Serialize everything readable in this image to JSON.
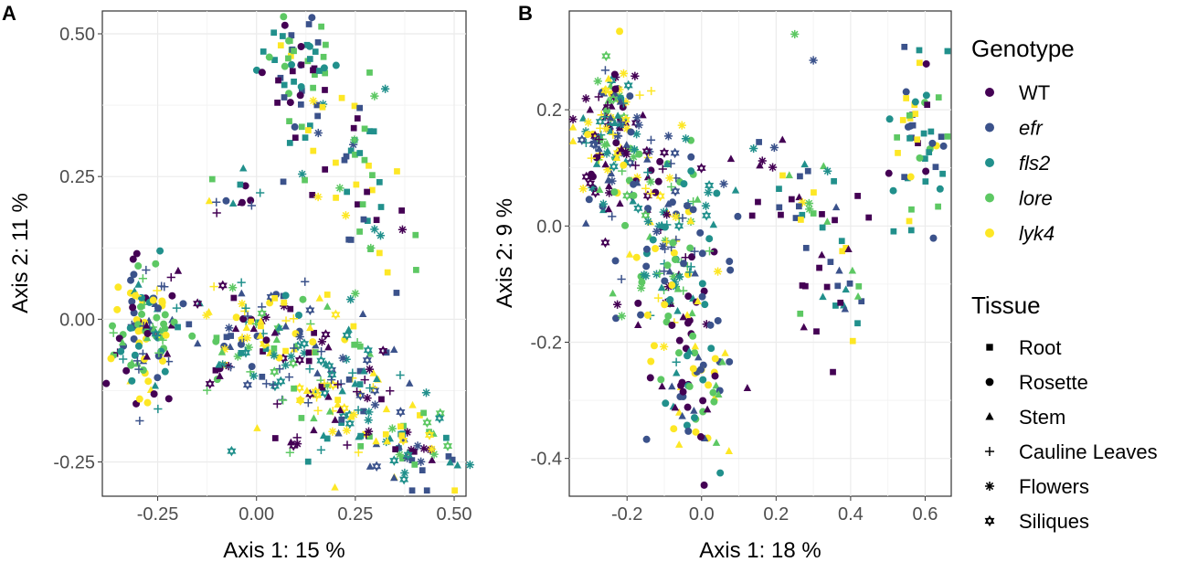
{
  "chart_data": [
    {
      "type": "scatter",
      "panel_label": "A",
      "xlabel": "Axis 1:  15 %",
      "ylabel": "Axis 2:  11 %",
      "xlim": [
        -0.39,
        0.53
      ],
      "ylim": [
        -0.31,
        0.54
      ],
      "xticks": [
        -0.25,
        0.0,
        0.25,
        0.5
      ],
      "xtick_labels": [
        "-0.25",
        "0.00",
        "0.25",
        "0.50"
      ],
      "yticks": [
        -0.25,
        0.0,
        0.25,
        0.5
      ],
      "ytick_labels": [
        "-0.25",
        "0.00",
        "0.25",
        "0.50"
      ],
      "grid": true,
      "clusters": [
        {
          "cx": 0.1,
          "cy": 0.44,
          "sx": 0.05,
          "sy": 0.05,
          "n": 60,
          "tissues": [
            "Root",
            "Root",
            "Root",
            "Rosette"
          ]
        },
        {
          "cx": 0.22,
          "cy": 0.3,
          "sx": 0.07,
          "sy": 0.07,
          "n": 50,
          "tissues": [
            "Root",
            "Root",
            "Root",
            "Flowers"
          ]
        },
        {
          "cx": 0.3,
          "cy": 0.15,
          "sx": 0.06,
          "sy": 0.05,
          "n": 20,
          "tissues": [
            "Root",
            "Root",
            "Flowers"
          ]
        },
        {
          "cx": -0.04,
          "cy": 0.21,
          "sx": 0.04,
          "sy": 0.03,
          "n": 14,
          "tissues": [
            "Rosette",
            "Stem",
            "Cauline Leaves",
            "Root"
          ]
        },
        {
          "cx": -0.28,
          "cy": -0.02,
          "sx": 0.04,
          "sy": 0.06,
          "n": 130,
          "tissues": [
            "Rosette",
            "Rosette",
            "Rosette",
            "Stem",
            "Cauline Leaves"
          ]
        },
        {
          "cx": 0.0,
          "cy": -0.03,
          "sx": 0.11,
          "sy": 0.05,
          "n": 150,
          "tissues": [
            "Stem",
            "Flowers",
            "Cauline Leaves",
            "Siliques",
            "Rosette",
            "Root"
          ]
        },
        {
          "cx": 0.2,
          "cy": -0.12,
          "sx": 0.08,
          "sy": 0.06,
          "n": 110,
          "tissues": [
            "Stem",
            "Flowers",
            "Siliques",
            "Root",
            "Cauline Leaves"
          ]
        },
        {
          "cx": 0.38,
          "cy": -0.22,
          "sx": 0.06,
          "sy": 0.04,
          "n": 70,
          "tissues": [
            "Stem",
            "Flowers",
            "Siliques",
            "Root"
          ]
        }
      ],
      "extra_points": [
        {
          "x": 0.25,
          "y": 0.045,
          "genotype": "lore",
          "tissue": "Flowers"
        },
        {
          "x": 0.54,
          "y": -0.255,
          "genotype": "fls2",
          "tissue": "Flowers"
        },
        {
          "x": 0.3,
          "y": -0.15,
          "genotype": "efr",
          "tissue": "Flowers"
        }
      ]
    },
    {
      "type": "scatter",
      "panel_label": "B",
      "xlabel": "Axis 1:  18 %",
      "ylabel": "Axis 2:  9 %",
      "xlim": [
        -0.355,
        0.67
      ],
      "ylim": [
        -0.465,
        0.37
      ],
      "xticks": [
        -0.2,
        0.0,
        0.2,
        0.4,
        0.6
      ],
      "xtick_labels": [
        "-0.2",
        "0.0",
        "0.2",
        "0.4",
        "0.6"
      ],
      "yticks": [
        -0.4,
        -0.2,
        0.0,
        0.2
      ],
      "ytick_labels": [
        "-0.4",
        "-0.2",
        "0.0",
        "0.2"
      ],
      "grid": true,
      "clusters": [
        {
          "cx": -0.24,
          "cy": 0.16,
          "sx": 0.04,
          "sy": 0.06,
          "n": 150,
          "tissues": [
            "Flowers",
            "Cauline Leaves",
            "Stem",
            "Siliques",
            "Rosette"
          ]
        },
        {
          "cx": -0.12,
          "cy": 0.06,
          "sx": 0.08,
          "sy": 0.06,
          "n": 80,
          "tissues": [
            "Flowers",
            "Stem",
            "Cauline Leaves",
            "Rosette",
            "Siliques"
          ]
        },
        {
          "cx": -0.08,
          "cy": -0.08,
          "sx": 0.06,
          "sy": 0.06,
          "n": 100,
          "tissues": [
            "Rosette",
            "Rosette",
            "Stem",
            "Cauline Leaves",
            "Flowers"
          ]
        },
        {
          "cx": -0.02,
          "cy": -0.26,
          "sx": 0.05,
          "sy": 0.07,
          "n": 90,
          "tissues": [
            "Rosette",
            "Rosette",
            "Rosette",
            "Stem"
          ]
        },
        {
          "cx": 0.58,
          "cy": 0.16,
          "sx": 0.04,
          "sy": 0.07,
          "n": 55,
          "tissues": [
            "Root",
            "Root",
            "Root",
            "Rosette"
          ]
        },
        {
          "cx": 0.36,
          "cy": -0.08,
          "sx": 0.06,
          "sy": 0.07,
          "n": 40,
          "tissues": [
            "Root",
            "Root",
            "Stem"
          ]
        },
        {
          "cx": 0.22,
          "cy": 0.08,
          "sx": 0.08,
          "sy": 0.06,
          "n": 30,
          "tissues": [
            "Root",
            "Stem",
            "Flowers"
          ]
        }
      ],
      "extra_points": [
        {
          "x": 0.25,
          "y": 0.33,
          "genotype": "lore",
          "tissue": "Flowers"
        },
        {
          "x": 0.3,
          "y": 0.285,
          "genotype": "efr",
          "tissue": "Flowers"
        },
        {
          "x": 0.05,
          "y": -0.425,
          "genotype": "fls2",
          "tissue": "Rosette"
        },
        {
          "x": -0.22,
          "y": 0.335,
          "genotype": "lyk4",
          "tissue": "Rosette"
        }
      ]
    }
  ],
  "legend": {
    "genotype_title": "Genotype",
    "genotypes": [
      {
        "key": "WT",
        "label": "WT",
        "italic": false,
        "color": "#440154"
      },
      {
        "key": "efr",
        "label": "efr",
        "italic": true,
        "color": "#3B528B"
      },
      {
        "key": "fls2",
        "label": "fls2",
        "italic": true,
        "color": "#21908C"
      },
      {
        "key": "lore",
        "label": "lore",
        "italic": true,
        "color": "#5DC863"
      },
      {
        "key": "lyk4",
        "label": "lyk4",
        "italic": true,
        "color": "#FDE725"
      }
    ],
    "tissue_title": "Tissue",
    "tissues": [
      {
        "key": "Root",
        "label": "Root",
        "shape": "square"
      },
      {
        "key": "Rosette",
        "label": "Rosette",
        "shape": "circle"
      },
      {
        "key": "Stem",
        "label": "Stem",
        "shape": "triangle"
      },
      {
        "key": "Cauline Leaves",
        "label": "Cauline Leaves",
        "shape": "plus"
      },
      {
        "key": "Flowers",
        "label": "Flowers",
        "shape": "asterisk"
      },
      {
        "key": "Siliques",
        "label": "Siliques",
        "shape": "star-of-david"
      }
    ]
  }
}
